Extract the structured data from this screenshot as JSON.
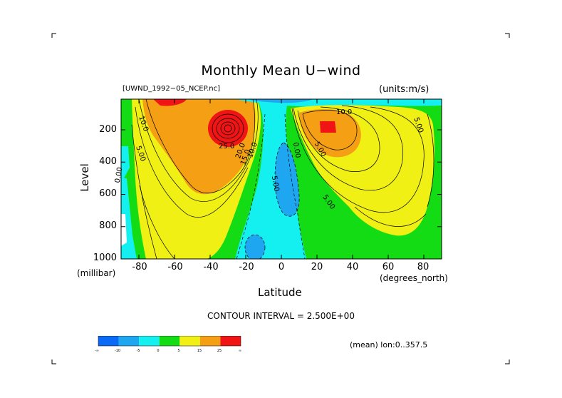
{
  "chart_data": {
    "type": "contour",
    "title": "Monthly Mean U−wind",
    "dataset_label": "[UWND_1992−05_NCEP.nc]",
    "units_label": "(units:m/s)",
    "xlabel": "Latitude",
    "ylabel": "Level",
    "y_unit_label": "(millibar)",
    "x_unit_label": "(degrees_north)",
    "x_ticks": [
      -80,
      -60,
      -40,
      -20,
      0,
      20,
      40,
      60,
      80
    ],
    "y_ticks": [
      200,
      400,
      600,
      800,
      1000
    ],
    "xlim": [
      -90,
      90
    ],
    "ylim": [
      1000,
      10
    ],
    "contour_interval_text": "CONTOUR INTERVAL = 2.500E+00",
    "mean_text": "(mean) lon:0..357.5",
    "contour_labels": [
      "10.0",
      "5.00",
      "0.00",
      "25.0",
      "20.0",
      "15.0",
      "10.0",
      "5.00",
      "10.0",
      "5.00",
      "5.00",
      "0.00",
      "5.00"
    ],
    "colorbar": {
      "labels": [
        "-∞",
        "-10",
        "-5",
        "0",
        "5",
        "15",
        "25",
        "∞"
      ],
      "colors": [
        "#0a6af5",
        "#1ea6f0",
        "#14f0f0",
        "#14dc14",
        "#f0f014",
        "#f5a014",
        "#f01414"
      ]
    },
    "colors": {
      "neg_strong": "#0a6af5",
      "neg": "#1ea6f0",
      "neg_weak": "#14f0f0",
      "pos_weak": "#14dc14",
      "pos": "#f0f014",
      "pos_mid": "#f5a014",
      "pos_strong": "#f01414"
    }
  }
}
